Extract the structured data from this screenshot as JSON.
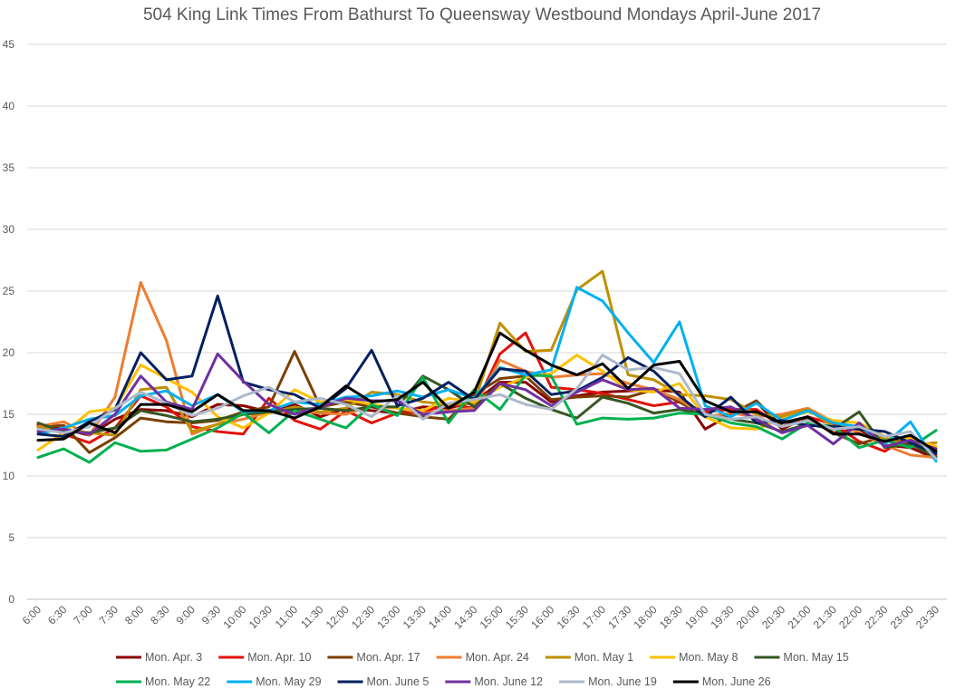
{
  "chart_data": {
    "type": "line",
    "title": "504 King Link Times From Bathurst To Queensway Westbound Mondays April-June 2017",
    "xlabel": "",
    "ylabel": "",
    "ylim": [
      0,
      45
    ],
    "yticks": [
      0,
      5,
      10,
      15,
      20,
      25,
      30,
      35,
      40,
      45
    ],
    "grid": true,
    "legend_position": "bottom",
    "categories": [
      "6:00",
      "6:30",
      "7:00",
      "7:30",
      "8:00",
      "8:30",
      "9:00",
      "9:30",
      "10:00",
      "10:30",
      "11:00",
      "11:30",
      "12:00",
      "12:30",
      "13:00",
      "13:30",
      "14:00",
      "14:30",
      "15:00",
      "15:30",
      "16:00",
      "16:30",
      "17:00",
      "17:30",
      "18:00",
      "18:30",
      "19:00",
      "19:30",
      "20:00",
      "20:30",
      "21:00",
      "21:30",
      "22:00",
      "22:30",
      "23:00",
      "23:30"
    ],
    "series": [
      {
        "name": "Mon. Apr. 3",
        "color": "#8B0000",
        "values": [
          14.1,
          13.8,
          13.3,
          14.6,
          15.4,
          15.3,
          14.8,
          15.8,
          15.7,
          15.2,
          15.8,
          14.8,
          15.5,
          15.3,
          15.1,
          15.6,
          15.5,
          16.0,
          17.6,
          17.6,
          16.0,
          16.5,
          16.8,
          16.9,
          17.0,
          16.8,
          13.8,
          15.0,
          16.0,
          13.8,
          14.8,
          13.5,
          13.8,
          12.5,
          12.3,
          11.4
        ]
      },
      {
        "name": "Mon. Apr. 10",
        "color": "#E3120B",
        "values": [
          14.2,
          13.4,
          12.7,
          13.9,
          16.5,
          15.6,
          14.0,
          13.6,
          13.4,
          16.3,
          14.5,
          13.8,
          15.3,
          14.3,
          15.1,
          15.2,
          15.8,
          15.5,
          19.9,
          21.6,
          17.2,
          17.0,
          16.7,
          16.2,
          15.7,
          16.0,
          15.2,
          15.4,
          15.4,
          14.0,
          14.8,
          14.2,
          12.8,
          12.0,
          13.3,
          11.6
        ]
      },
      {
        "name": "Mon. Apr. 17",
        "color": "#7B3F00",
        "values": [
          14.0,
          14.1,
          11.9,
          13.1,
          14.7,
          14.4,
          14.3,
          14.5,
          15.2,
          15.6,
          20.1,
          15.6,
          16.0,
          15.6,
          15.1,
          14.8,
          14.6,
          16.6,
          17.9,
          18.1,
          16.2,
          16.4,
          16.5,
          16.4,
          17.0,
          16.0,
          14.8,
          15.0,
          16.1,
          14.0,
          14.6,
          13.5,
          12.6,
          13.2,
          12.5,
          12.2
        ]
      },
      {
        "name": "Mon. Apr. 24",
        "color": "#ED7D31",
        "values": [
          14.0,
          14.4,
          13.3,
          16.4,
          25.7,
          21.0,
          13.4,
          14.2,
          14.6,
          15.2,
          15.3,
          15.1,
          15.0,
          15.7,
          15.5,
          15.1,
          15.3,
          15.5,
          19.4,
          18.5,
          18.0,
          18.2,
          18.3,
          17.5,
          17.0,
          16.2,
          14.8,
          15.1,
          14.8,
          15.0,
          15.5,
          14.4,
          13.5,
          12.5,
          11.7,
          11.5
        ]
      },
      {
        "name": "Mon. May 1",
        "color": "#BF9000",
        "values": [
          13.9,
          13.7,
          13.5,
          13.3,
          17.0,
          17.2,
          13.6,
          14.2,
          15.0,
          15.1,
          15.6,
          15.2,
          15.5,
          16.8,
          16.6,
          16.0,
          15.8,
          15.9,
          22.4,
          20.1,
          20.2,
          25.1,
          26.6,
          18.2,
          17.8,
          16.6,
          16.5,
          16.2,
          15.0,
          14.8,
          15.4,
          14.0,
          13.9,
          13.0,
          12.5,
          12.7
        ]
      },
      {
        "name": "Mon. May 8",
        "color": "#FFC000",
        "values": [
          12.1,
          13.5,
          15.2,
          15.5,
          19.0,
          17.9,
          16.8,
          14.8,
          13.9,
          15.1,
          17.0,
          16.0,
          16.2,
          15.8,
          15.5,
          15.3,
          16.3,
          16.0,
          17.2,
          18.0,
          18.3,
          19.8,
          18.5,
          17.0,
          16.8,
          17.5,
          14.8,
          13.9,
          13.8,
          14.6,
          15.2,
          14.5,
          14.3,
          13.2,
          13.0,
          12.4
        ]
      },
      {
        "name": "Mon. May 15",
        "color": "#375623",
        "values": [
          14.3,
          13.6,
          13.5,
          13.9,
          15.3,
          14.9,
          14.4,
          14.6,
          15.0,
          15.2,
          15.4,
          15.5,
          15.3,
          15.6,
          15.6,
          18.1,
          17.0,
          15.6,
          17.5,
          16.3,
          15.4,
          14.7,
          16.4,
          15.9,
          15.1,
          15.4,
          15.0,
          14.6,
          14.3,
          13.6,
          14.2,
          13.8,
          15.2,
          12.3,
          12.6,
          11.5
        ]
      },
      {
        "name": "Mon. May 22",
        "color": "#00B050",
        "values": [
          11.5,
          12.2,
          11.1,
          12.7,
          12.0,
          12.1,
          13.0,
          13.9,
          15.1,
          13.5,
          15.3,
          14.6,
          13.9,
          15.8,
          14.9,
          18.0,
          14.3,
          17.0,
          15.4,
          18.2,
          18.1,
          14.2,
          14.7,
          14.6,
          14.7,
          15.1,
          15.0,
          14.3,
          14.0,
          13.0,
          14.3,
          14.0,
          12.3,
          12.9,
          12.3,
          13.7
        ]
      },
      {
        "name": "Mon. May 29",
        "color": "#00B0F0",
        "values": [
          13.4,
          13.9,
          14.6,
          14.9,
          16.5,
          16.9,
          15.7,
          16.6,
          15.2,
          15.3,
          16.0,
          15.8,
          16.4,
          16.5,
          16.9,
          16.4,
          17.0,
          16.3,
          18.8,
          18.2,
          18.6,
          25.3,
          24.2,
          21.6,
          19.2,
          22.5,
          15.7,
          14.8,
          15.9,
          14.5,
          15.3,
          14.3,
          14.0,
          12.6,
          14.4,
          11.2
        ]
      },
      {
        "name": "Mon. June 5",
        "color": "#002060",
        "values": [
          13.4,
          13.2,
          14.4,
          15.4,
          20.0,
          17.8,
          18.1,
          24.6,
          17.6,
          17.0,
          16.6,
          15.5,
          17.1,
          20.2,
          15.7,
          16.3,
          17.6,
          16.2,
          18.7,
          18.5,
          16.6,
          16.9,
          18.0,
          19.6,
          18.5,
          16.5,
          14.8,
          16.4,
          14.3,
          14.5,
          14.1,
          14.0,
          13.8,
          13.6,
          12.7,
          11.8
        ]
      },
      {
        "name": "Mon. June 12",
        "color": "#7030A0",
        "values": [
          13.6,
          13.8,
          13.4,
          15.0,
          18.1,
          16.0,
          15.4,
          19.9,
          17.7,
          15.8,
          15.0,
          15.6,
          16.3,
          16.1,
          16.1,
          15.0,
          15.2,
          15.3,
          17.5,
          17.0,
          15.7,
          16.8,
          17.8,
          17.0,
          17.1,
          15.5,
          15.4,
          15.6,
          14.6,
          13.5,
          14.1,
          12.6,
          14.3,
          12.4,
          12.9,
          12.2
        ]
      },
      {
        "name": "Mon. June 19",
        "color": "#ADB9CA",
        "values": [
          13.8,
          13.5,
          14.0,
          15.5,
          16.8,
          15.9,
          14.9,
          15.5,
          16.5,
          17.2,
          16.0,
          16.3,
          15.8,
          14.8,
          16.5,
          14.6,
          15.9,
          16.2,
          16.6,
          15.8,
          15.4,
          17.1,
          19.8,
          18.6,
          18.8,
          18.3,
          15.0,
          14.6,
          14.8,
          14.0,
          14.5,
          13.8,
          14.0,
          13.2,
          13.6,
          11.4
        ]
      },
      {
        "name": "Mon. June 26",
        "color": "#000000",
        "values": [
          12.9,
          13.0,
          14.3,
          13.5,
          15.8,
          15.8,
          15.2,
          16.6,
          15.3,
          15.3,
          14.7,
          15.6,
          17.3,
          16.0,
          16.2,
          17.6,
          15.5,
          16.8,
          21.6,
          20.2,
          19.0,
          18.2,
          19.1,
          17.1,
          19.0,
          19.3,
          16.1,
          15.2,
          15.2,
          14.3,
          14.8,
          13.4,
          13.4,
          12.8,
          13.3,
          12.0
        ]
      }
    ]
  }
}
